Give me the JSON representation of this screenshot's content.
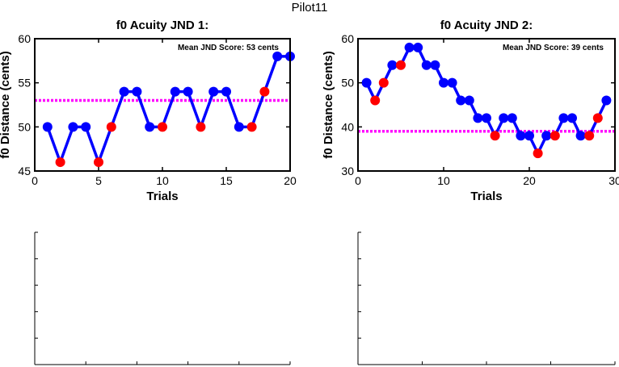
{
  "window_title": "Pilot11",
  "colors": {
    "series_line": "#0000ff",
    "correct_marker": "#0000ff",
    "incorrect_marker": "#ff0000",
    "mean_line": "#ff00ff",
    "axes": "#000000"
  },
  "chart_data": [
    {
      "type": "line",
      "title": "f0 Acuity JND 1:",
      "xlabel": "Trials",
      "ylabel": "f0 Distance (cents)",
      "xlim": [
        0,
        20
      ],
      "ylim": [
        45,
        60
      ],
      "xticks": [
        0,
        5,
        10,
        15,
        20
      ],
      "yticks": [
        45,
        50,
        55,
        60
      ],
      "annotation": "Mean JND Score: 53 cents",
      "mean_line": 53,
      "series": [
        {
          "x": [
            1,
            2,
            3,
            4,
            5,
            6,
            7,
            8,
            9,
            10,
            11,
            12,
            13,
            14,
            15,
            16,
            17,
            18,
            19,
            20
          ],
          "y": [
            50,
            46,
            50,
            50,
            46,
            50,
            54,
            54,
            50,
            50,
            54,
            54,
            50,
            54,
            54,
            50,
            50,
            54,
            58,
            58
          ],
          "marker_colors": [
            "blue",
            "red",
            "blue",
            "blue",
            "red",
            "red",
            "blue",
            "blue",
            "blue",
            "red",
            "blue",
            "blue",
            "red",
            "blue",
            "blue",
            "blue",
            "red",
            "red",
            "blue",
            "blue"
          ]
        }
      ]
    },
    {
      "type": "line",
      "title": "f0 Acuity JND 2:",
      "xlabel": "Trials",
      "ylabel": "f0 Distance (cents)",
      "xlim": [
        0,
        30
      ],
      "ylim": [
        30,
        60
      ],
      "xticks": [
        0,
        10,
        20,
        30
      ],
      "yticks": [
        30,
        40,
        50,
        60
      ],
      "annotation": "Mean JND Score: 39 cents",
      "mean_line": 39,
      "series": [
        {
          "x": [
            1,
            2,
            3,
            4,
            5,
            6,
            7,
            8,
            9,
            10,
            11,
            12,
            13,
            14,
            15,
            16,
            17,
            18,
            19,
            20,
            21,
            22,
            23,
            24,
            25,
            26,
            27,
            28,
            29
          ],
          "y": [
            50,
            46,
            50,
            54,
            54,
            58,
            58,
            54,
            54,
            50,
            50,
            46,
            46,
            42,
            42,
            38,
            42,
            42,
            38,
            38,
            34,
            38,
            38,
            42,
            42,
            38,
            38,
            42,
            46
          ],
          "marker_colors": [
            "blue",
            "red",
            "red",
            "blue",
            "red",
            "blue",
            "blue",
            "blue",
            "blue",
            "blue",
            "blue",
            "blue",
            "blue",
            "blue",
            "blue",
            "red",
            "blue",
            "blue",
            "blue",
            "blue",
            "red",
            "blue",
            "red",
            "blue",
            "blue",
            "blue",
            "red",
            "red",
            "blue"
          ]
        }
      ]
    }
  ]
}
